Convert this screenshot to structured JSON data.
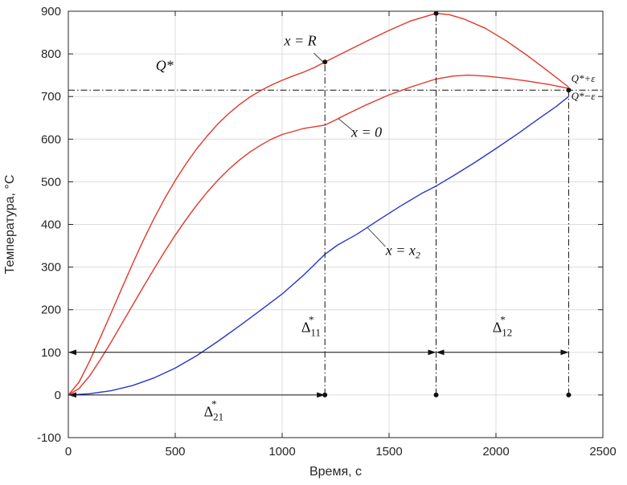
{
  "chart_data": {
    "type": "line",
    "title": "",
    "xlabel": "Время, с",
    "ylabel": "Температура, °C",
    "xlim": [
      0,
      2500
    ],
    "ylim": [
      -100,
      900
    ],
    "xticks": [
      0,
      500,
      1000,
      1500,
      2000,
      2500
    ],
    "yticks": [
      -100,
      0,
      100,
      200,
      300,
      400,
      500,
      600,
      700,
      800,
      900
    ],
    "grid": true,
    "legend_position": "none",
    "colors": {
      "red": "#e3362c",
      "blue": "#2b35cc",
      "axis": "#262626",
      "grid": "#dcdcdc",
      "annotation": "#111111"
    },
    "series": [
      {
        "id": "x-R",
        "name": "x = R",
        "color": "#e3362c",
        "points": [
          [
            0,
            0
          ],
          [
            50,
            30
          ],
          [
            100,
            80
          ],
          [
            150,
            135
          ],
          [
            200,
            192
          ],
          [
            250,
            250
          ],
          [
            300,
            307
          ],
          [
            350,
            362
          ],
          [
            400,
            413
          ],
          [
            450,
            460
          ],
          [
            500,
            503
          ],
          [
            550,
            542
          ],
          [
            600,
            577
          ],
          [
            650,
            608
          ],
          [
            700,
            636
          ],
          [
            750,
            660
          ],
          [
            800,
            681
          ],
          [
            850,
            699
          ],
          [
            900,
            714
          ],
          [
            950,
            727
          ],
          [
            1000,
            738
          ],
          [
            1050,
            748
          ],
          [
            1100,
            757
          ],
          [
            1150,
            768
          ],
          [
            1200,
            781
          ],
          [
            1300,
            806
          ],
          [
            1400,
            831
          ],
          [
            1500,
            855
          ],
          [
            1600,
            877
          ],
          [
            1700,
            892
          ],
          [
            1720,
            895
          ],
          [
            1780,
            892
          ],
          [
            1850,
            882
          ],
          [
            1950,
            860
          ],
          [
            2050,
            830
          ],
          [
            2150,
            795
          ],
          [
            2250,
            757
          ],
          [
            2340,
            722
          ]
        ]
      },
      {
        "id": "x-0",
        "name": "x = 0",
        "color": "#e3362c",
        "points": [
          [
            0,
            0
          ],
          [
            50,
            15
          ],
          [
            100,
            45
          ],
          [
            150,
            83
          ],
          [
            200,
            124
          ],
          [
            250,
            167
          ],
          [
            300,
            210
          ],
          [
            350,
            253
          ],
          [
            400,
            295
          ],
          [
            450,
            336
          ],
          [
            500,
            375
          ],
          [
            550,
            411
          ],
          [
            600,
            445
          ],
          [
            650,
            476
          ],
          [
            700,
            504
          ],
          [
            750,
            529
          ],
          [
            800,
            551
          ],
          [
            850,
            570
          ],
          [
            900,
            586
          ],
          [
            950,
            600
          ],
          [
            1000,
            611
          ],
          [
            1100,
            625
          ],
          [
            1200,
            633
          ],
          [
            1250,
            645
          ],
          [
            1300,
            658
          ],
          [
            1400,
            682
          ],
          [
            1500,
            704
          ],
          [
            1600,
            722
          ],
          [
            1700,
            738
          ],
          [
            1720,
            741
          ],
          [
            1800,
            748
          ],
          [
            1870,
            750
          ],
          [
            1950,
            748
          ],
          [
            2050,
            743
          ],
          [
            2150,
            736
          ],
          [
            2250,
            728
          ],
          [
            2340,
            719
          ]
        ]
      },
      {
        "id": "x-x2",
        "name": "x = x2",
        "color": "#2b35cc",
        "points": [
          [
            0,
            0
          ],
          [
            100,
            3
          ],
          [
            200,
            10
          ],
          [
            300,
            22
          ],
          [
            400,
            40
          ],
          [
            500,
            63
          ],
          [
            600,
            92
          ],
          [
            700,
            126
          ],
          [
            800,
            162
          ],
          [
            900,
            199
          ],
          [
            1000,
            237
          ],
          [
            1100,
            281
          ],
          [
            1200,
            330
          ],
          [
            1260,
            352
          ],
          [
            1350,
            377
          ],
          [
            1450,
            410
          ],
          [
            1550,
            442
          ],
          [
            1650,
            472
          ],
          [
            1720,
            490
          ],
          [
            1800,
            514
          ],
          [
            1900,
            545
          ],
          [
            2000,
            578
          ],
          [
            2100,
            612
          ],
          [
            2200,
            648
          ],
          [
            2280,
            676
          ],
          [
            2340,
            700
          ]
        ]
      }
    ],
    "q_line": {
      "y": 715,
      "x0": 0,
      "x1": 2500,
      "label": "Q*",
      "label_x": 450,
      "label_y": 762
    },
    "vertical_lines": [
      {
        "x": 1200,
        "y0": 0,
        "y1": 781
      },
      {
        "x": 1720,
        "y0": 0,
        "y1": 895
      },
      {
        "x": 2340,
        "y0": 0,
        "y1": 715
      }
    ],
    "arrows": [
      {
        "from": 0,
        "to": 1720,
        "y": 100
      },
      {
        "from": 1720,
        "to": 2340,
        "y": 100
      },
      {
        "from": 0,
        "to": 1200,
        "y": 0
      }
    ],
    "delta_labels": [
      {
        "base": "Δ",
        "sub": "11",
        "sup": "*",
        "x": 1135,
        "y": 148
      },
      {
        "base": "Δ",
        "sub": "12",
        "sup": "*",
        "x": 2030,
        "y": 148
      },
      {
        "base": "Δ",
        "sub": "21",
        "sup": "*",
        "x": 680,
        "y": -50
      }
    ],
    "curve_labels": [
      {
        "text": "x = R",
        "sub": "",
        "x": 1085,
        "y": 820,
        "leader": [
          [
            1148,
            802
          ],
          [
            1202,
            776
          ]
        ]
      },
      {
        "text": "x = 0",
        "sub": "",
        "x": 1395,
        "y": 605,
        "leader": [
          [
            1335,
            618
          ],
          [
            1264,
            648
          ]
        ]
      },
      {
        "text": "x = x",
        "sub": "2",
        "x": 1565,
        "y": 328,
        "leader": [
          [
            1483,
            348
          ],
          [
            1400,
            392
          ]
        ]
      }
    ],
    "edge_labels": [
      {
        "text": "Q*+ε",
        "x": 2352,
        "y": 734
      },
      {
        "text": "Q*−ε",
        "x": 2352,
        "y": 693
      }
    ]
  }
}
